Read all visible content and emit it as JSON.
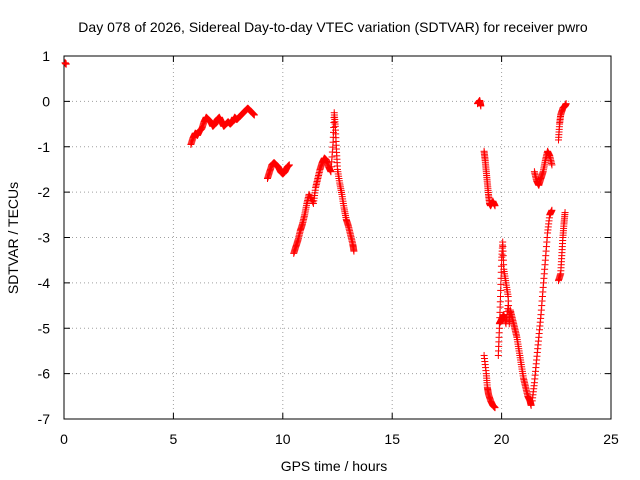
{
  "chart_data": {
    "type": "scatter",
    "title": "Day 078 of 2026, Sidereal Day-to-day VTEC variation (SDTVAR) for receiver pwro",
    "xlabel": "GPS time / hours",
    "ylabel": "SDTVAR / TECUs",
    "xlim": [
      0,
      25
    ],
    "ylim": [
      -7,
      1
    ],
    "xticks": [
      0,
      5,
      10,
      15,
      20,
      25
    ],
    "yticks": [
      1,
      0,
      -1,
      -2,
      -3,
      -4,
      -5,
      -6,
      -7
    ],
    "grid": true,
    "marker": "+",
    "marker_color": "#ff0000",
    "series": [
      {
        "segments": [
          [
            [
              0.05,
              0.85
            ],
            [
              0.1,
              0.82
            ]
          ],
          [
            [
              5.8,
              -0.95
            ],
            [
              5.9,
              -0.8
            ],
            [
              6.0,
              -0.7
            ],
            [
              6.1,
              -0.75
            ],
            [
              6.2,
              -0.65
            ],
            [
              6.3,
              -0.6
            ],
            [
              6.4,
              -0.45
            ],
            [
              6.5,
              -0.35
            ],
            [
              6.6,
              -0.4
            ],
            [
              6.7,
              -0.45
            ],
            [
              6.8,
              -0.55
            ],
            [
              6.9,
              -0.5
            ],
            [
              7.0,
              -0.4
            ],
            [
              7.1,
              -0.35
            ],
            [
              7.2,
              -0.45
            ],
            [
              7.3,
              -0.55
            ],
            [
              7.4,
              -0.5
            ],
            [
              7.5,
              -0.45
            ],
            [
              7.6,
              -0.5
            ],
            [
              7.7,
              -0.45
            ],
            [
              7.8,
              -0.35
            ],
            [
              7.9,
              -0.4
            ],
            [
              8.0,
              -0.35
            ],
            [
              8.1,
              -0.3
            ],
            [
              8.2,
              -0.25
            ],
            [
              8.3,
              -0.2
            ],
            [
              8.4,
              -0.15
            ],
            [
              8.5,
              -0.2
            ],
            [
              8.6,
              -0.25
            ],
            [
              8.7,
              -0.3
            ]
          ],
          [
            [
              9.3,
              -1.7
            ],
            [
              9.4,
              -1.55
            ],
            [
              9.5,
              -1.4
            ],
            [
              9.6,
              -1.35
            ],
            [
              9.7,
              -1.4
            ],
            [
              9.8,
              -1.45
            ],
            [
              9.9,
              -1.55
            ],
            [
              10.0,
              -1.6
            ],
            [
              10.1,
              -1.55
            ],
            [
              10.2,
              -1.45
            ],
            [
              10.3,
              -1.4
            ]
          ],
          [
            [
              10.5,
              -3.35
            ],
            [
              10.6,
              -3.2
            ],
            [
              10.7,
              -3.05
            ],
            [
              10.8,
              -2.85
            ],
            [
              10.9,
              -2.7
            ],
            [
              11.0,
              -2.5
            ],
            [
              11.1,
              -2.25
            ],
            [
              11.2,
              -2.05
            ],
            [
              11.4,
              -2.25
            ],
            [
              11.5,
              -1.9
            ],
            [
              11.6,
              -1.7
            ],
            [
              11.7,
              -1.5
            ],
            [
              11.8,
              -1.35
            ],
            [
              11.9,
              -1.25
            ],
            [
              12.0,
              -1.3
            ],
            [
              12.1,
              -1.45
            ],
            [
              12.2,
              -1.55
            ],
            [
              12.3,
              -0.9
            ],
            [
              12.35,
              -0.25
            ],
            [
              12.4,
              -0.55
            ],
            [
              12.45,
              -1.05
            ],
            [
              12.5,
              -1.5
            ],
            [
              12.6,
              -1.8
            ],
            [
              12.7,
              -2.05
            ],
            [
              12.8,
              -2.35
            ],
            [
              12.9,
              -2.6
            ],
            [
              13.0,
              -2.75
            ],
            [
              13.1,
              -2.95
            ],
            [
              13.2,
              -3.15
            ],
            [
              13.25,
              -3.3
            ]
          ],
          [
            [
              18.9,
              -0.05
            ],
            [
              19.0,
              0.02
            ],
            [
              19.05,
              -0.1
            ]
          ],
          [
            [
              19.2,
              -1.1
            ],
            [
              19.25,
              -1.3
            ],
            [
              19.3,
              -1.55
            ],
            [
              19.35,
              -1.8
            ],
            [
              19.4,
              -2.05
            ],
            [
              19.45,
              -2.25
            ],
            [
              19.5,
              -2.3
            ],
            [
              19.6,
              -2.2
            ],
            [
              19.7,
              -2.3
            ]
          ],
          [
            [
              19.2,
              -5.6
            ],
            [
              19.3,
              -6.0
            ],
            [
              19.35,
              -6.3
            ],
            [
              19.4,
              -6.45
            ],
            [
              19.5,
              -6.6
            ],
            [
              19.6,
              -6.7
            ],
            [
              19.7,
              -6.75
            ]
          ],
          [
            [
              19.85,
              -5.6
            ],
            [
              19.9,
              -5.0
            ],
            [
              19.95,
              -4.3
            ],
            [
              20.0,
              -3.5
            ],
            [
              20.05,
              -3.1
            ],
            [
              20.1,
              -3.7
            ],
            [
              20.2,
              -4.0
            ],
            [
              20.3,
              -4.3
            ],
            [
              20.35,
              -4.9
            ],
            [
              20.4,
              -4.6
            ],
            [
              20.5,
              -4.8
            ],
            [
              20.6,
              -5.0
            ],
            [
              20.7,
              -5.2
            ],
            [
              20.8,
              -5.5
            ],
            [
              20.9,
              -5.8
            ],
            [
              21.0,
              -6.1
            ],
            [
              21.1,
              -6.3
            ],
            [
              21.2,
              -6.5
            ],
            [
              21.3,
              -6.6
            ],
            [
              21.35,
              -6.7
            ]
          ],
          [
            [
              19.9,
              -4.9
            ],
            [
              20.0,
              -4.8
            ],
            [
              20.1,
              -4.7
            ],
            [
              20.2,
              -4.9
            ],
            [
              20.3,
              -4.5
            ]
          ],
          [
            [
              21.4,
              -6.6
            ],
            [
              21.5,
              -6.2
            ],
            [
              21.6,
              -5.7
            ],
            [
              21.7,
              -5.2
            ],
            [
              21.8,
              -4.7
            ],
            [
              21.9,
              -4.1
            ],
            [
              22.0,
              -3.5
            ],
            [
              22.1,
              -2.9
            ],
            [
              22.2,
              -2.5
            ],
            [
              22.3,
              -2.4
            ]
          ],
          [
            [
              21.5,
              -1.55
            ],
            [
              21.6,
              -1.75
            ],
            [
              21.7,
              -1.85
            ],
            [
              21.8,
              -1.7
            ],
            [
              21.9,
              -1.55
            ],
            [
              22.0,
              -1.3
            ],
            [
              22.1,
              -1.1
            ],
            [
              22.2,
              -1.2
            ],
            [
              22.3,
              -1.4
            ]
          ],
          [
            [
              22.6,
              -3.95
            ],
            [
              22.7,
              -3.8
            ],
            [
              22.75,
              -3.4
            ],
            [
              22.8,
              -3.0
            ],
            [
              22.85,
              -2.7
            ],
            [
              22.9,
              -2.45
            ]
          ],
          [
            [
              22.6,
              -0.85
            ],
            [
              22.65,
              -0.5
            ],
            [
              22.7,
              -0.3
            ],
            [
              22.8,
              -0.15
            ],
            [
              22.9,
              -0.1
            ],
            [
              22.95,
              -0.05
            ]
          ]
        ]
      }
    ]
  }
}
